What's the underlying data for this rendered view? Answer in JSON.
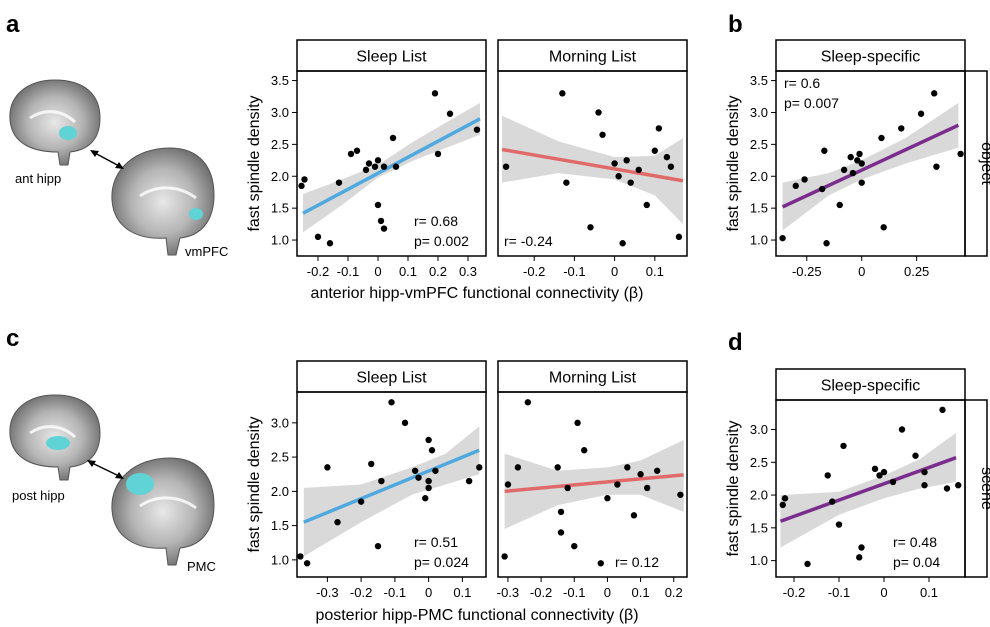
{
  "panel_labels": [
    "a",
    "b",
    "c",
    "d"
  ],
  "brains": {
    "a": {
      "region1": "ant hipp",
      "region2": "vmPFC",
      "highlight_color": "#5fd3d6"
    },
    "c": {
      "region1": "post hipp",
      "region2": "PMC",
      "highlight_color": "#5fd3d6"
    }
  },
  "rows": {
    "a_xlabel": "anterior hipp-vmPFC functional connectivity (β)",
    "c_xlabel": "posterior hipp-PMC functional connectivity (β)"
  },
  "colors": {
    "sleep": "#4fa9de",
    "morning": "#e06a6a",
    "specific": "#7b2d8e",
    "ci_band": "#d9d9d9"
  },
  "chart_data": [
    {
      "id": "a-sleep",
      "type": "scatter",
      "title": "Sleep List",
      "ylabel": "fast spindle density",
      "xlabel": "",
      "xlim": [
        -0.27,
        0.36
      ],
      "ylim": [
        0.75,
        3.65
      ],
      "xticks": [
        -0.2,
        -0.1,
        0,
        0.1,
        0.2,
        0.3
      ],
      "xtick_labels": [
        "-0.2",
        "-0.1",
        "0",
        "0.1",
        "0.2",
        "0.3"
      ],
      "yticks": [
        1.0,
        1.5,
        2.0,
        2.5,
        3.0,
        3.5
      ],
      "ytick_labels": [
        "1.0",
        "1.5",
        "2.0",
        "2.5",
        "3.0",
        "3.5"
      ],
      "points": [
        [
          -0.255,
          1.85
        ],
        [
          -0.245,
          1.95
        ],
        [
          -0.2,
          1.05
        ],
        [
          -0.16,
          0.95
        ],
        [
          -0.13,
          1.9
        ],
        [
          -0.09,
          2.35
        ],
        [
          -0.07,
          2.4
        ],
        [
          -0.04,
          2.1
        ],
        [
          -0.03,
          2.2
        ],
        [
          -0.01,
          2.15
        ],
        [
          0.0,
          2.25
        ],
        [
          0.0,
          1.55
        ],
        [
          0.01,
          1.3
        ],
        [
          0.02,
          2.15
        ],
        [
          0.05,
          2.6
        ],
        [
          0.06,
          2.15
        ],
        [
          0.19,
          3.3
        ],
        [
          0.2,
          2.35
        ],
        [
          0.24,
          2.98
        ],
        [
          0.33,
          2.73
        ],
        [
          0.02,
          1.18
        ]
      ],
      "fit": [
        [
          -0.25,
          1.42
        ],
        [
          0.34,
          2.9
        ]
      ],
      "ci_upper": [
        [
          -0.25,
          1.72
        ],
        [
          -0.12,
          1.95
        ],
        [
          0.0,
          2.18
        ],
        [
          0.12,
          2.55
        ],
        [
          0.34,
          3.15
        ]
      ],
      "ci_lower": [
        [
          -0.25,
          1.12
        ],
        [
          -0.12,
          1.55
        ],
        [
          0.0,
          1.98
        ],
        [
          0.12,
          2.25
        ],
        [
          0.34,
          2.65
        ]
      ],
      "line_color": "#4fa9de",
      "stats": [
        "r= 0.68",
        "p= 0.002"
      ],
      "stats_pos": "bottom-right"
    },
    {
      "id": "a-morning",
      "type": "scatter",
      "title": "Morning List",
      "xlabel": "",
      "xlim": [
        -0.29,
        0.18
      ],
      "ylim": [
        0.75,
        3.65
      ],
      "xticks": [
        -0.2,
        -0.1,
        0,
        0.1
      ],
      "xtick_labels": [
        "-0.2",
        "-0.1",
        "0",
        "0.1"
      ],
      "points": [
        [
          -0.27,
          2.15
        ],
        [
          -0.13,
          3.3
        ],
        [
          -0.12,
          1.9
        ],
        [
          -0.06,
          1.2
        ],
        [
          -0.04,
          3.0
        ],
        [
          -0.03,
          2.65
        ],
        [
          0.0,
          2.2
        ],
        [
          0.01,
          2.0
        ],
        [
          0.02,
          0.95
        ],
        [
          0.03,
          2.25
        ],
        [
          0.04,
          1.9
        ],
        [
          0.06,
          2.1
        ],
        [
          0.08,
          1.55
        ],
        [
          0.1,
          2.4
        ],
        [
          0.11,
          2.75
        ],
        [
          0.14,
          2.15
        ],
        [
          0.16,
          1.05
        ],
        [
          0.13,
          2.3
        ]
      ],
      "fit": [
        [
          -0.28,
          2.42
        ],
        [
          0.17,
          1.93
        ]
      ],
      "ci_upper": [
        [
          -0.28,
          2.95
        ],
        [
          -0.14,
          2.55
        ],
        [
          0.0,
          2.3
        ],
        [
          0.1,
          2.32
        ],
        [
          0.17,
          2.6
        ]
      ],
      "ci_lower": [
        [
          -0.28,
          1.9
        ],
        [
          -0.14,
          2.05
        ],
        [
          0.0,
          1.95
        ],
        [
          0.1,
          1.7
        ],
        [
          0.17,
          1.25
        ]
      ],
      "line_color": "#e06a6a",
      "stats": [
        "r= -0.24"
      ],
      "stats_pos": "bottom-left"
    },
    {
      "id": "b-specific",
      "type": "scatter",
      "title": "Sleep-specific",
      "strip": "object",
      "ylabel": "fast spindle density",
      "xlabel": "",
      "xlim": [
        -0.39,
        0.47
      ],
      "ylim": [
        0.75,
        3.65
      ],
      "xticks": [
        -0.25,
        0,
        0.25
      ],
      "xtick_labels": [
        "-0.25",
        "0",
        "0.25"
      ],
      "yticks": [
        1.0,
        1.5,
        2.0,
        2.5,
        3.0,
        3.5
      ],
      "ytick_labels": [
        "1.0",
        "1.5",
        "2.0",
        "2.5",
        "3.0",
        "3.5"
      ],
      "points": [
        [
          -0.36,
          1.03
        ],
        [
          -0.3,
          1.85
        ],
        [
          -0.26,
          1.95
        ],
        [
          -0.18,
          1.8
        ],
        [
          -0.17,
          2.4
        ],
        [
          -0.16,
          0.95
        ],
        [
          -0.1,
          1.55
        ],
        [
          -0.08,
          2.1
        ],
        [
          -0.05,
          2.3
        ],
        [
          -0.02,
          2.25
        ],
        [
          -0.01,
          2.35
        ],
        [
          0.0,
          1.9
        ],
        [
          0.09,
          2.6
        ],
        [
          0.1,
          1.2
        ],
        [
          0.18,
          2.75
        ],
        [
          0.27,
          2.98
        ],
        [
          0.33,
          3.3
        ],
        [
          0.34,
          2.15
        ],
        [
          0.45,
          2.35
        ],
        [
          0.0,
          2.2
        ],
        [
          -0.04,
          2.05
        ]
      ],
      "fit": [
        [
          -0.36,
          1.52
        ],
        [
          0.44,
          2.8
        ]
      ],
      "ci_upper": [
        [
          -0.36,
          1.9
        ],
        [
          -0.15,
          2.05
        ],
        [
          0.0,
          2.25
        ],
        [
          0.2,
          2.6
        ],
        [
          0.44,
          3.15
        ]
      ],
      "ci_lower": [
        [
          -0.36,
          1.15
        ],
        [
          -0.15,
          1.7
        ],
        [
          0.0,
          1.95
        ],
        [
          0.2,
          2.2
        ],
        [
          0.44,
          2.45
        ]
      ],
      "line_color": "#7b2d8e",
      "stats": [
        "r= 0.6",
        "p= 0.007"
      ],
      "stats_pos": "top-left"
    },
    {
      "id": "c-sleep",
      "type": "scatter",
      "title": "Sleep List",
      "ylabel": "fast spindle density",
      "xlabel": "",
      "xlim": [
        -0.39,
        0.17
      ],
      "ylim": [
        0.75,
        3.45
      ],
      "xticks": [
        -0.3,
        -0.2,
        -0.1,
        0,
        0.1
      ],
      "xtick_labels": [
        "-0.3",
        "-0.2",
        "-0.1",
        "0",
        "0.1"
      ],
      "yticks": [
        1.0,
        1.5,
        2.0,
        2.5,
        3.0
      ],
      "ytick_labels": [
        "1.0",
        "1.5",
        "2.0",
        "2.5",
        "3.0"
      ],
      "points": [
        [
          -0.38,
          1.05
        ],
        [
          -0.36,
          0.95
        ],
        [
          -0.3,
          2.35
        ],
        [
          -0.27,
          1.55
        ],
        [
          -0.2,
          1.85
        ],
        [
          -0.17,
          2.4
        ],
        [
          -0.15,
          1.2
        ],
        [
          -0.14,
          2.15
        ],
        [
          -0.11,
          3.3
        ],
        [
          -0.07,
          3.0
        ],
        [
          -0.04,
          2.3
        ],
        [
          -0.03,
          2.2
        ],
        [
          0.0,
          2.75
        ],
        [
          -0.01,
          1.9
        ],
        [
          0.0,
          2.05
        ],
        [
          0.01,
          2.6
        ],
        [
          0.02,
          2.3
        ],
        [
          0.12,
          2.15
        ],
        [
          0.15,
          2.35
        ],
        [
          0.0,
          2.15
        ]
      ],
      "fit": [
        [
          -0.37,
          1.55
        ],
        [
          0.15,
          2.6
        ]
      ],
      "ci_upper": [
        [
          -0.37,
          2.05
        ],
        [
          -0.2,
          2.1
        ],
        [
          -0.05,
          2.35
        ],
        [
          0.05,
          2.55
        ],
        [
          0.15,
          2.95
        ]
      ],
      "ci_lower": [
        [
          -0.37,
          1.05
        ],
        [
          -0.2,
          1.55
        ],
        [
          -0.05,
          1.95
        ],
        [
          0.05,
          2.1
        ],
        [
          0.15,
          2.25
        ]
      ],
      "line_color": "#4fa9de",
      "stats": [
        "r= 0.51",
        "p= 0.024"
      ],
      "stats_pos": "bottom-right"
    },
    {
      "id": "c-morning",
      "type": "scatter",
      "title": "Morning List",
      "xlabel": "",
      "xlim": [
        -0.33,
        0.24
      ],
      "ylim": [
        0.75,
        3.45
      ],
      "xticks": [
        -0.3,
        -0.2,
        -0.1,
        0,
        0.1,
        0.2
      ],
      "xtick_labels": [
        "-0.3",
        "-0.2",
        "-0.1",
        "0",
        "0.1",
        "0.2"
      ],
      "points": [
        [
          -0.31,
          1.05
        ],
        [
          -0.3,
          2.1
        ],
        [
          -0.27,
          2.35
        ],
        [
          -0.24,
          3.3
        ],
        [
          -0.15,
          2.35
        ],
        [
          -0.14,
          1.7
        ],
        [
          -0.14,
          1.4
        ],
        [
          -0.12,
          2.05
        ],
        [
          -0.1,
          1.2
        ],
        [
          -0.09,
          3.0
        ],
        [
          -0.07,
          2.6
        ],
        [
          -0.02,
          0.95
        ],
        [
          0.0,
          1.9
        ],
        [
          0.03,
          2.1
        ],
        [
          0.06,
          2.35
        ],
        [
          0.08,
          1.65
        ],
        [
          0.1,
          2.25
        ],
        [
          0.12,
          2.05
        ],
        [
          0.15,
          2.3
        ],
        [
          0.22,
          1.95
        ]
      ],
      "fit": [
        [
          -0.31,
          2.0
        ],
        [
          0.23,
          2.24
        ]
      ],
      "ci_upper": [
        [
          -0.31,
          2.55
        ],
        [
          -0.15,
          2.3
        ],
        [
          0.0,
          2.35
        ],
        [
          0.1,
          2.45
        ],
        [
          0.23,
          2.75
        ]
      ],
      "ci_lower": [
        [
          -0.31,
          1.45
        ],
        [
          -0.15,
          1.8
        ],
        [
          0.0,
          1.95
        ],
        [
          0.1,
          1.95
        ],
        [
          0.23,
          1.7
        ]
      ],
      "line_color": "#e06a6a",
      "stats": [
        "r= 0.12"
      ],
      "stats_pos": "bottom-right"
    },
    {
      "id": "d-specific",
      "type": "scatter",
      "title": "Sleep-specific",
      "strip": "scene",
      "ylabel": "fast spindle density",
      "xlabel": "",
      "xlim": [
        -0.24,
        0.18
      ],
      "ylim": [
        0.75,
        3.45
      ],
      "xticks": [
        -0.2,
        -0.1,
        0,
        0.1
      ],
      "xtick_labels": [
        "-0.2",
        "-0.1",
        "0",
        "0.1"
      ],
      "yticks": [
        1.0,
        1.5,
        2.0,
        2.5,
        3.0
      ],
      "ytick_labels": [
        "1.0",
        "1.5",
        "2.0",
        "2.5",
        "3.0"
      ],
      "points": [
        [
          -0.225,
          1.85
        ],
        [
          -0.22,
          1.95
        ],
        [
          -0.17,
          0.95
        ],
        [
          -0.125,
          2.3
        ],
        [
          -0.115,
          1.9
        ],
        [
          -0.1,
          1.55
        ],
        [
          -0.09,
          2.75
        ],
        [
          -0.055,
          1.05
        ],
        [
          -0.05,
          1.2
        ],
        [
          -0.02,
          2.4
        ],
        [
          -0.01,
          2.3
        ],
        [
          0.0,
          2.35
        ],
        [
          0.02,
          2.2
        ],
        [
          0.04,
          3.0
        ],
        [
          0.07,
          2.6
        ],
        [
          0.09,
          2.35
        ],
        [
          0.09,
          2.15
        ],
        [
          0.13,
          3.3
        ],
        [
          0.14,
          2.1
        ],
        [
          0.165,
          2.15
        ]
      ],
      "fit": [
        [
          -0.23,
          1.6
        ],
        [
          0.16,
          2.57
        ]
      ],
      "ci_upper": [
        [
          -0.23,
          2.0
        ],
        [
          -0.1,
          2.05
        ],
        [
          0.0,
          2.3
        ],
        [
          0.08,
          2.55
        ],
        [
          0.16,
          2.95
        ]
      ],
      "ci_lower": [
        [
          -0.23,
          1.2
        ],
        [
          -0.1,
          1.7
        ],
        [
          0.0,
          1.95
        ],
        [
          0.08,
          2.1
        ],
        [
          0.16,
          2.2
        ]
      ],
      "line_color": "#7b2d8e",
      "stats": [
        "r= 0.48",
        "p= 0.04"
      ],
      "stats_pos": "bottom-right"
    }
  ]
}
